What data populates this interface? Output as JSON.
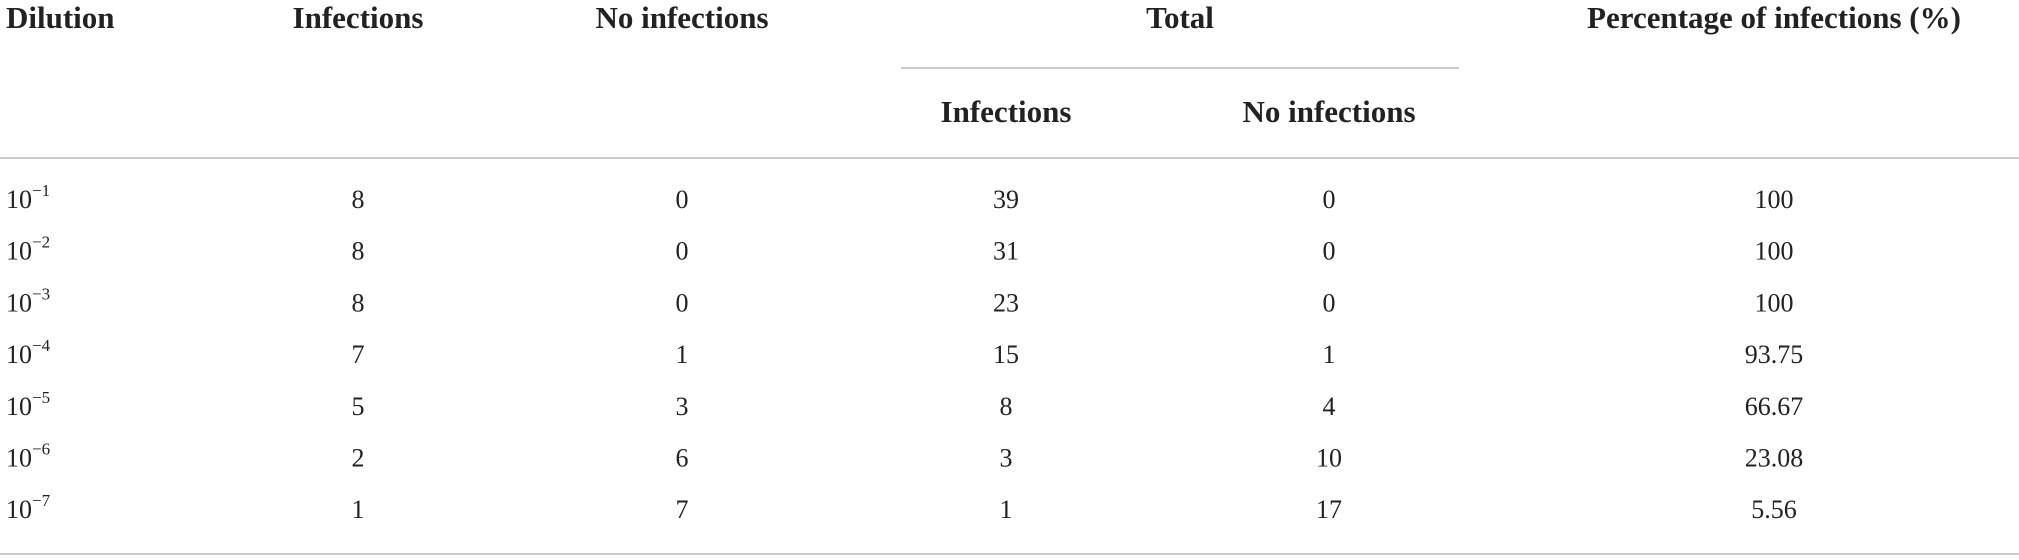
{
  "table": {
    "header": [
      "Dilution",
      "Infections",
      "No infections",
      "Total",
      "Percentage of infections (%)"
    ],
    "subheader": [
      "Infections",
      "No infections"
    ],
    "rows": [
      [
        {
          "base": "10",
          "exponent": "−1"
        },
        8,
        0,
        39,
        0,
        100
      ],
      [
        {
          "base": "10",
          "exponent": "−2"
        },
        8,
        0,
        31,
        0,
        100
      ],
      [
        {
          "base": "10",
          "exponent": "−3"
        },
        8,
        0,
        23,
        0,
        100
      ],
      [
        {
          "base": "10",
          "exponent": "−4"
        },
        7,
        1,
        15,
        1,
        93.75
      ],
      [
        {
          "base": "10",
          "exponent": "−5"
        },
        5,
        3,
        8,
        4,
        66.67
      ],
      [
        {
          "base": "10",
          "exponent": "−6"
        },
        2,
        6,
        3,
        10,
        23.08
      ],
      [
        {
          "base": "10",
          "exponent": "−7"
        },
        1,
        7,
        1,
        17,
        5.56
      ]
    ]
  }
}
